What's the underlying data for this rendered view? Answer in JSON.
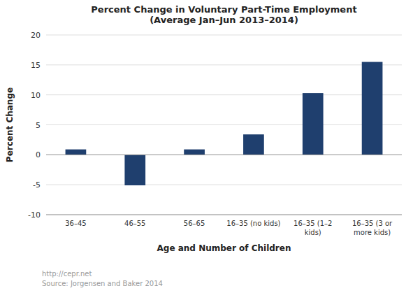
{
  "chart_data": {
    "type": "bar",
    "title": "Percent Change in Voluntary Part-Time Employment\n(Average Jan–Jun 2013–2014)",
    "x_label": "Age and Number of Children",
    "y_label": "Percent Change",
    "categories": [
      "36–45",
      "46–55",
      "56–65",
      "16–35 (no kids)",
      "16–35 (1–2\nkids)",
      "16–35 (3 or\nmore kids)"
    ],
    "values": [
      0.9,
      -5.1,
      0.9,
      3.4,
      10.3,
      15.5
    ],
    "color": "#1F3F6E",
    "ylim": [
      -10,
      20
    ],
    "yticks": [
      -10,
      -5,
      0,
      5,
      10,
      15,
      20
    ],
    "grid": true,
    "footnote": "http://cepr.net\nSource: Jorgensen and Baker 2014"
  }
}
